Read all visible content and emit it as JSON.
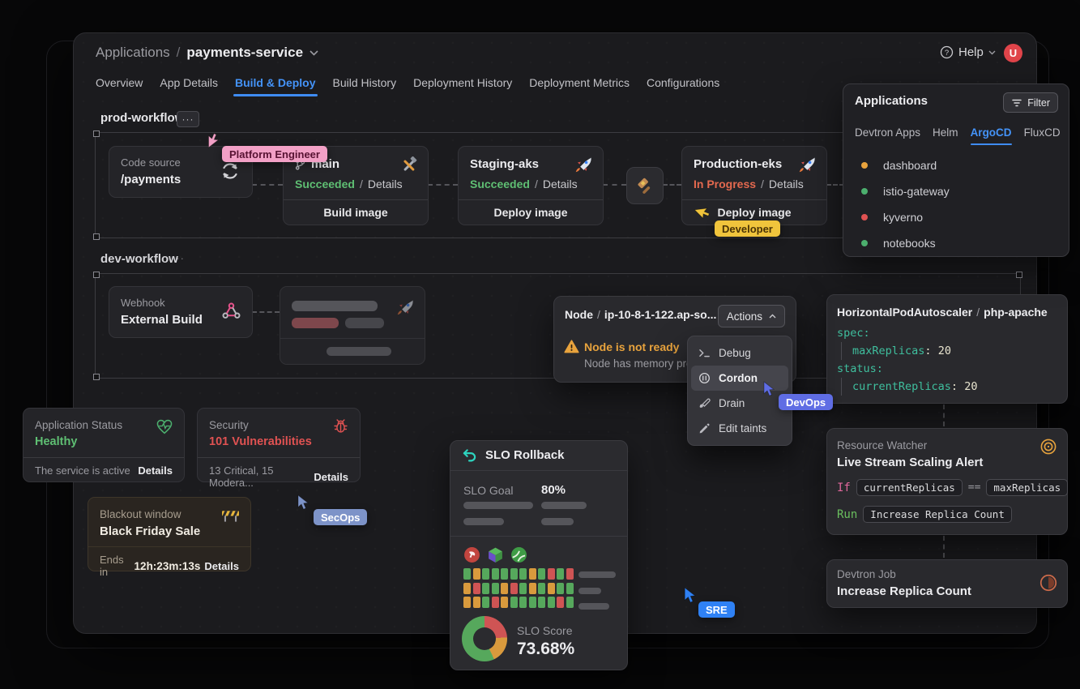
{
  "header": {
    "breadcrumb_root": "Applications",
    "breadcrumb_sep": "/",
    "app_name": "payments-service",
    "help_label": "Help",
    "avatar_initial": "U"
  },
  "tabs": {
    "items": [
      "Overview",
      "App Details",
      "Build & Deploy",
      "Build History",
      "Deployment History",
      "Deployment Metrics",
      "Configurations"
    ],
    "active": "Build & Deploy"
  },
  "prod_workflow": {
    "label": "prod-workflow",
    "ellipsis": "···",
    "code_source": {
      "label": "Code source",
      "value": "/payments"
    },
    "build": {
      "title": "main",
      "status": "Succeeded",
      "sep": "/",
      "details": "Details",
      "action": "Build image"
    },
    "staging": {
      "title": "Staging-aks",
      "status": "Succeeded",
      "sep": "/",
      "details": "Details",
      "action": "Deploy image"
    },
    "production": {
      "title": "Production-eks",
      "status": "In Progress",
      "sep": "/",
      "details": "Details",
      "action": "Deploy image"
    }
  },
  "applications_panel": {
    "title": "Applications",
    "filter_label": "Filter",
    "tabs": [
      "Devtron Apps",
      "Helm",
      "ArgoCD",
      "FluxCD"
    ],
    "active_tab": "ArgoCD",
    "items": [
      {
        "name": "dashboard",
        "color": "#e8a33d"
      },
      {
        "name": "istio-gateway",
        "color": "#4caf6e"
      },
      {
        "name": "kyverno",
        "color": "#e05252"
      },
      {
        "name": "notebooks",
        "color": "#4caf6e"
      }
    ]
  },
  "dev_workflow": {
    "label": "dev-workflow",
    "ellipsis": "···",
    "webhook": {
      "label": "Webhook",
      "value": "External Build"
    }
  },
  "node_panel": {
    "resource": "Node",
    "sep": "/",
    "name": "ip-10-8-1-122.ap-so...",
    "actions_label": "Actions",
    "warning_title": "Node is not ready",
    "warning_sub": "Node has memory pre...",
    "menu": [
      {
        "label": "Debug"
      },
      {
        "label": "Cordon"
      },
      {
        "label": "Drain"
      },
      {
        "label": "Edit taints"
      }
    ],
    "active_item": "Cordon"
  },
  "hpa_panel": {
    "title_resource": "HorizontalPodAutoscaler",
    "sep": "/",
    "title_name": "php-apache",
    "spec_key": "spec:",
    "max_key": "maxReplicas",
    "colon": ":",
    "max_val": "20",
    "status_key": "status:",
    "current_key": "currentReplicas",
    "current_val": "20"
  },
  "status_card": {
    "label": "Application Status",
    "value": "Healthy",
    "footer": "The service is active",
    "link": "Details"
  },
  "security_card": {
    "label": "Security",
    "value": "101 Vulnerabilities",
    "footer": "13 Critical, 15 Modera...",
    "link": "Details"
  },
  "blackout_card": {
    "label": "Blackout window",
    "value": "Black Friday Sale",
    "footer_prefix": "Ends in",
    "timer": "12h:23m:13s",
    "link": "Details"
  },
  "slo_panel": {
    "title": "SLO Rollback",
    "goal_label": "SLO Goal",
    "goal_value": "80%",
    "score_label": "SLO Score",
    "score_value": "73.68%"
  },
  "resource_watcher": {
    "label": "Resource Watcher",
    "title": "Live Stream Scaling Alert",
    "if_keyword": "If",
    "chip_left": "currentReplicas",
    "operator": "==",
    "chip_right": "maxReplicas",
    "run_keyword": "Run",
    "run_chip": "Increase Replica Count"
  },
  "devtron_job": {
    "label": "Devtron Job",
    "title": "Increase Replica Count"
  },
  "cursors": {
    "platform_engineer": {
      "label": "Platform Engineer",
      "color": "#f2a0c6",
      "text": "#571232"
    },
    "developer": {
      "label": "Developer",
      "color": "#f0c43c",
      "text": "#4a3305"
    },
    "secops": {
      "label": "SecOps",
      "color": "#7d93c8",
      "text": "#ffffff"
    },
    "devops": {
      "label": "DevOps",
      "color": "#5f6de4",
      "text": "#ffffff"
    },
    "sre": {
      "label": "SRE",
      "color": "#2f81f4",
      "text": "#ffffff"
    }
  },
  "chart_data": [
    {
      "type": "heatmap",
      "name": "slo-burn-grid",
      "rows": 3,
      "cols": 12,
      "palette": {
        "G": "#56a85c",
        "O": "#d99a3d",
        "R": "#cf5454"
      },
      "values": [
        [
          "G",
          "O",
          "G",
          "G",
          "G",
          "G",
          "G",
          "O",
          "G",
          "R",
          "G",
          "R"
        ],
        [
          "O",
          "R",
          "G",
          "G",
          "O",
          "R",
          "G",
          "O",
          "G",
          "O",
          "G",
          "G"
        ],
        [
          "O",
          "O",
          "G",
          "R",
          "O",
          "G",
          "G",
          "G",
          "G",
          "G",
          "R",
          "G"
        ]
      ]
    },
    {
      "type": "pie",
      "name": "slo-score-donut",
      "title": "SLO Score",
      "value": "73.68%",
      "segments": [
        {
          "label": "breach",
          "color": "#cf5454",
          "pct": 24
        },
        {
          "label": "warning",
          "color": "#d99a3d",
          "pct": 19
        },
        {
          "label": "healthy",
          "color": "#56a85c",
          "pct": 57
        }
      ]
    }
  ]
}
